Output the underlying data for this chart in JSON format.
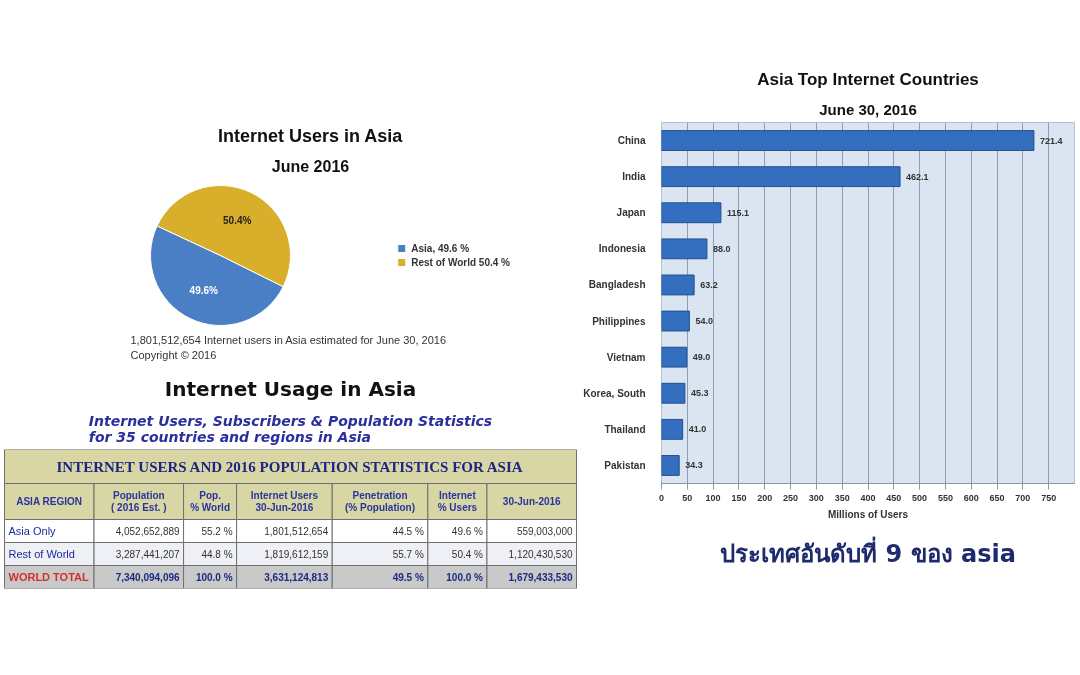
{
  "chart_data": [
    {
      "type": "pie",
      "title": "Internet Users in Asia",
      "subtitle": "June 2016",
      "categories": [
        "Asia, 49.6 %",
        "Rest of World 50.4 %"
      ],
      "values": [
        49.6,
        50.4
      ],
      "colors": [
        "#4a7fc6",
        "#d9ae2a"
      ],
      "value_labels": [
        "49.6%",
        "50.4%"
      ],
      "legend": "right",
      "annotations": [
        "1,801,512,654 Internet users in Asia estimated for June 30, 2016",
        "Copyright © 2016"
      ]
    },
    {
      "type": "bar",
      "orientation": "horizontal",
      "title": "Asia Top Internet Countries",
      "subtitle": "June 30, 2016",
      "categories": [
        "China",
        "India",
        "Japan",
        "Indonesia",
        "Bangladesh",
        "Philippines",
        "Vietnam",
        "Korea, South",
        "Thailand",
        "Pakistan"
      ],
      "values": [
        721.4,
        462.1,
        115.1,
        88.0,
        63.2,
        54.0,
        49.0,
        45.3,
        41.0,
        34.3
      ],
      "value_labels": [
        "721.4",
        "462.1",
        "115.1",
        "88.0",
        "63.2",
        "54.0",
        "49.0",
        "45.3",
        "41.0",
        "34.3"
      ],
      "color": "#336fbe",
      "xlabel": "Millions of Users",
      "xlim": [
        0,
        800
      ],
      "xticks": [
        0,
        50,
        100,
        150,
        200,
        250,
        300,
        350,
        400,
        450,
        500,
        550,
        600,
        650,
        700,
        750
      ],
      "grid": "x",
      "annotations": [
        "ประเทศอันดับที่ 9 ของ asia"
      ]
    },
    {
      "type": "other",
      "title": "Internet Usage in Asia",
      "subtitle": "Internet Users, Subscribers & Population Statistics\nfor 35 countries and regions in Asia",
      "annotations": [
        "INTERNET USERS AND 2016 POPULATION STATISTICS FOR ASIA"
      ],
      "categories": [
        "ASIA REGION",
        "Population\n( 2016 Est. )",
        "Pop.\n% World",
        "Internet Users\n30-Jun-2016",
        "Penetration\n(% Population)",
        "Internet\n% Users",
        "30-Jun-2016"
      ],
      "y_categories": [
        "Asia Only",
        "Rest of World",
        "WORLD TOTAL"
      ],
      "cell_labels": [
        [
          "4,052,652,889",
          "55.2 %",
          "1,801,512,654",
          "44.5 %",
          "49.6 %",
          "559,003,000"
        ],
        [
          "3,287,441,207",
          "44.8 %",
          "1,819,612,159",
          "55.7 %",
          "50.4 %",
          "1,120,430,530"
        ],
        [
          "7,340,094,096",
          "100.0 %",
          "3,631,124,813",
          "49.5 %",
          "100.0 %",
          "1,679,433,530"
        ]
      ]
    }
  ]
}
